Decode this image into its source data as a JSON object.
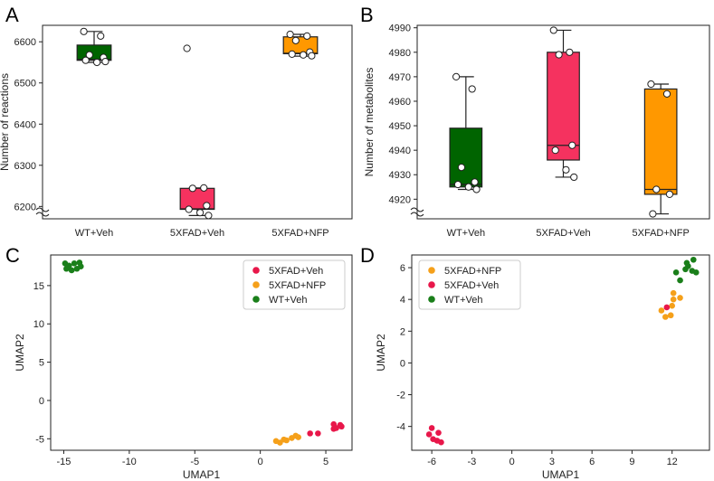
{
  "panels": {
    "a": {
      "letter": "A"
    },
    "b": {
      "letter": "B"
    },
    "c": {
      "letter": "C"
    },
    "d": {
      "letter": "D"
    }
  },
  "colors": {
    "wt": "#006400",
    "fad_veh": "#f5325f",
    "fad_nfp": "#ff9800",
    "scatter_wt": "#1a7f1a",
    "scatter_veh": "#e8174a",
    "scatter_nfp": "#f5a01a"
  },
  "chart_data": [
    {
      "id": "A",
      "type": "box",
      "title": "",
      "xlabel": "",
      "ylabel": "Number of reactions",
      "ylim": [
        6170,
        6640
      ],
      "yticks": [
        6200,
        6300,
        6400,
        6500,
        6600
      ],
      "axis_break": true,
      "categories": [
        "WT+Veh",
        "5XFAD+Veh",
        "5XFAD+NFP"
      ],
      "boxes": [
        {
          "name": "WT+Veh",
          "q1": 6555,
          "median": 6557,
          "q3": 6592,
          "whisker_low": 6550,
          "whisker_high": 6625,
          "color_key": "wt",
          "points": [
            6625,
            6614,
            6568,
            6562,
            6555,
            6550,
            6552
          ]
        },
        {
          "name": "5XFAD+Veh",
          "q1": 6193,
          "median": 6194,
          "q3": 6244,
          "whisker_low": 6178,
          "whisker_high": 6245,
          "color_key": "fad_veh",
          "points": [
            6584,
            6245,
            6244,
            6202,
            6193,
            6185,
            6178
          ]
        },
        {
          "name": "5XFAD+NFP",
          "q1": 6571,
          "median": 6572,
          "q3": 6612,
          "whisker_low": 6565,
          "whisker_high": 6618,
          "color_key": "fad_nfp",
          "points": [
            6618,
            6614,
            6603,
            6575,
            6570,
            6568,
            6566
          ]
        }
      ]
    },
    {
      "id": "B",
      "type": "box",
      "title": "",
      "xlabel": "",
      "ylabel": "Number of metabolites",
      "ylim": [
        4912,
        4991
      ],
      "yticks": [
        4920,
        4930,
        4940,
        4950,
        4960,
        4970,
        4980,
        4990
      ],
      "axis_break": true,
      "categories": [
        "WT+Veh",
        "5XFAD+Veh",
        "5XFAD+NFP"
      ],
      "boxes": [
        {
          "name": "WT+Veh",
          "q1": 4925,
          "median": 4926,
          "q3": 4949,
          "whisker_low": 4924,
          "whisker_high": 4970,
          "color_key": "wt",
          "points": [
            4970,
            4965,
            4933,
            4927,
            4926,
            4925,
            4924
          ]
        },
        {
          "name": "5XFAD+Veh",
          "q1": 4936,
          "median": 4942,
          "q3": 4980,
          "whisker_low": 4929,
          "whisker_high": 4989,
          "color_key": "fad_veh",
          "points": [
            4989,
            4980,
            4979,
            4942,
            4940,
            4932,
            4929
          ]
        },
        {
          "name": "5XFAD+NFP",
          "q1": 4922,
          "median": 4924,
          "q3": 4965,
          "whisker_low": 4914,
          "whisker_high": 4967,
          "color_key": "fad_nfp",
          "points": [
            4967,
            4963,
            4924,
            4922,
            4914
          ]
        }
      ]
    },
    {
      "id": "C",
      "type": "scatter",
      "title": "",
      "xlabel": "UMAP1",
      "ylabel": "UMAP2",
      "xlim": [
        -16,
        7
      ],
      "ylim": [
        -6.5,
        19
      ],
      "xticks": [
        -15,
        -10,
        -5,
        0,
        5
      ],
      "yticks": [
        -5,
        0,
        5,
        10,
        15
      ],
      "legend_position": "top-right",
      "series": [
        {
          "name": "5XFAD+Veh",
          "color_key": "scatter_veh",
          "points": [
            [
              3.8,
              -4.3
            ],
            [
              4.4,
              -4.3
            ],
            [
              5.6,
              -3.1
            ],
            [
              6.1,
              -3.2
            ],
            [
              5.8,
              -3.6
            ],
            [
              5.6,
              -3.7
            ],
            [
              6.2,
              -3.4
            ]
          ]
        },
        {
          "name": "5XFAD+NFP",
          "color_key": "scatter_nfp",
          "points": [
            [
              1.2,
              -5.3
            ],
            [
              1.5,
              -5.5
            ],
            [
              2.0,
              -5.2
            ],
            [
              2.4,
              -4.9
            ],
            [
              2.7,
              -4.6
            ],
            [
              2.9,
              -4.8
            ],
            [
              1.8,
              -5.1
            ]
          ]
        },
        {
          "name": "WT+Veh",
          "color_key": "scatter_wt",
          "points": [
            [
              -14.9,
              17.9
            ],
            [
              -14.6,
              17.6
            ],
            [
              -14.2,
              17.9
            ],
            [
              -13.8,
              18.0
            ],
            [
              -14.8,
              17.2
            ],
            [
              -14.4,
              17.0
            ],
            [
              -14.0,
              17.2
            ],
            [
              -13.7,
              17.5
            ]
          ]
        }
      ]
    },
    {
      "id": "D",
      "type": "scatter",
      "title": "",
      "xlabel": "UMAP1",
      "ylabel": "UMAP2",
      "xlim": [
        -7.5,
        14.8
      ],
      "ylim": [
        -5.5,
        6.8
      ],
      "xticks": [
        -6,
        -3,
        0,
        3,
        6,
        9,
        12
      ],
      "yticks": [
        -4,
        -2,
        0,
        2,
        4,
        6
      ],
      "legend_position": "top-left",
      "series": [
        {
          "name": "5XFAD+NFP",
          "color_key": "scatter_nfp",
          "points": [
            [
              11.2,
              3.3
            ],
            [
              11.5,
              2.9
            ],
            [
              11.9,
              3.0
            ],
            [
              12.0,
              3.6
            ],
            [
              12.1,
              4.4
            ],
            [
              12.6,
              4.1
            ],
            [
              12.1,
              4.0
            ]
          ]
        },
        {
          "name": "5XFAD+Veh",
          "color_key": "scatter_veh",
          "points": [
            [
              -6.0,
              -4.1
            ],
            [
              -5.5,
              -4.4
            ],
            [
              -6.2,
              -4.5
            ],
            [
              -5.9,
              -4.8
            ],
            [
              -5.6,
              -4.9
            ],
            [
              -5.3,
              -5.0
            ],
            [
              11.6,
              3.5
            ]
          ]
        },
        {
          "name": "WT+Veh",
          "color_key": "scatter_wt",
          "points": [
            [
              12.3,
              5.7
            ],
            [
              12.6,
              5.2
            ],
            [
              13.0,
              5.9
            ],
            [
              13.2,
              6.1
            ],
            [
              13.5,
              5.8
            ],
            [
              13.8,
              5.7
            ],
            [
              13.6,
              6.5
            ],
            [
              13.1,
              6.3
            ]
          ]
        }
      ]
    }
  ]
}
